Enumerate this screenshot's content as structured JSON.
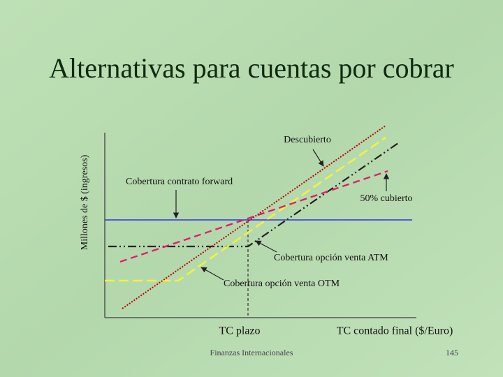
{
  "title": "Alternativas para cuentas por cobrar",
  "y_axis_label": "Millones de $ (ingresos)",
  "labels": {
    "unhedged": "Descubierto",
    "forward": "Cobertura contrato forward",
    "half": "50% cubierto",
    "atm": "Cobertura opción venta ATM",
    "otm": "Cobertura opción venta OTM"
  },
  "x_axis": {
    "forward_rate": "TC plazo",
    "label": "TC contado final ($/Euro)"
  },
  "footer": {
    "text": "Finanzas Internacionales",
    "page": "145"
  }
}
